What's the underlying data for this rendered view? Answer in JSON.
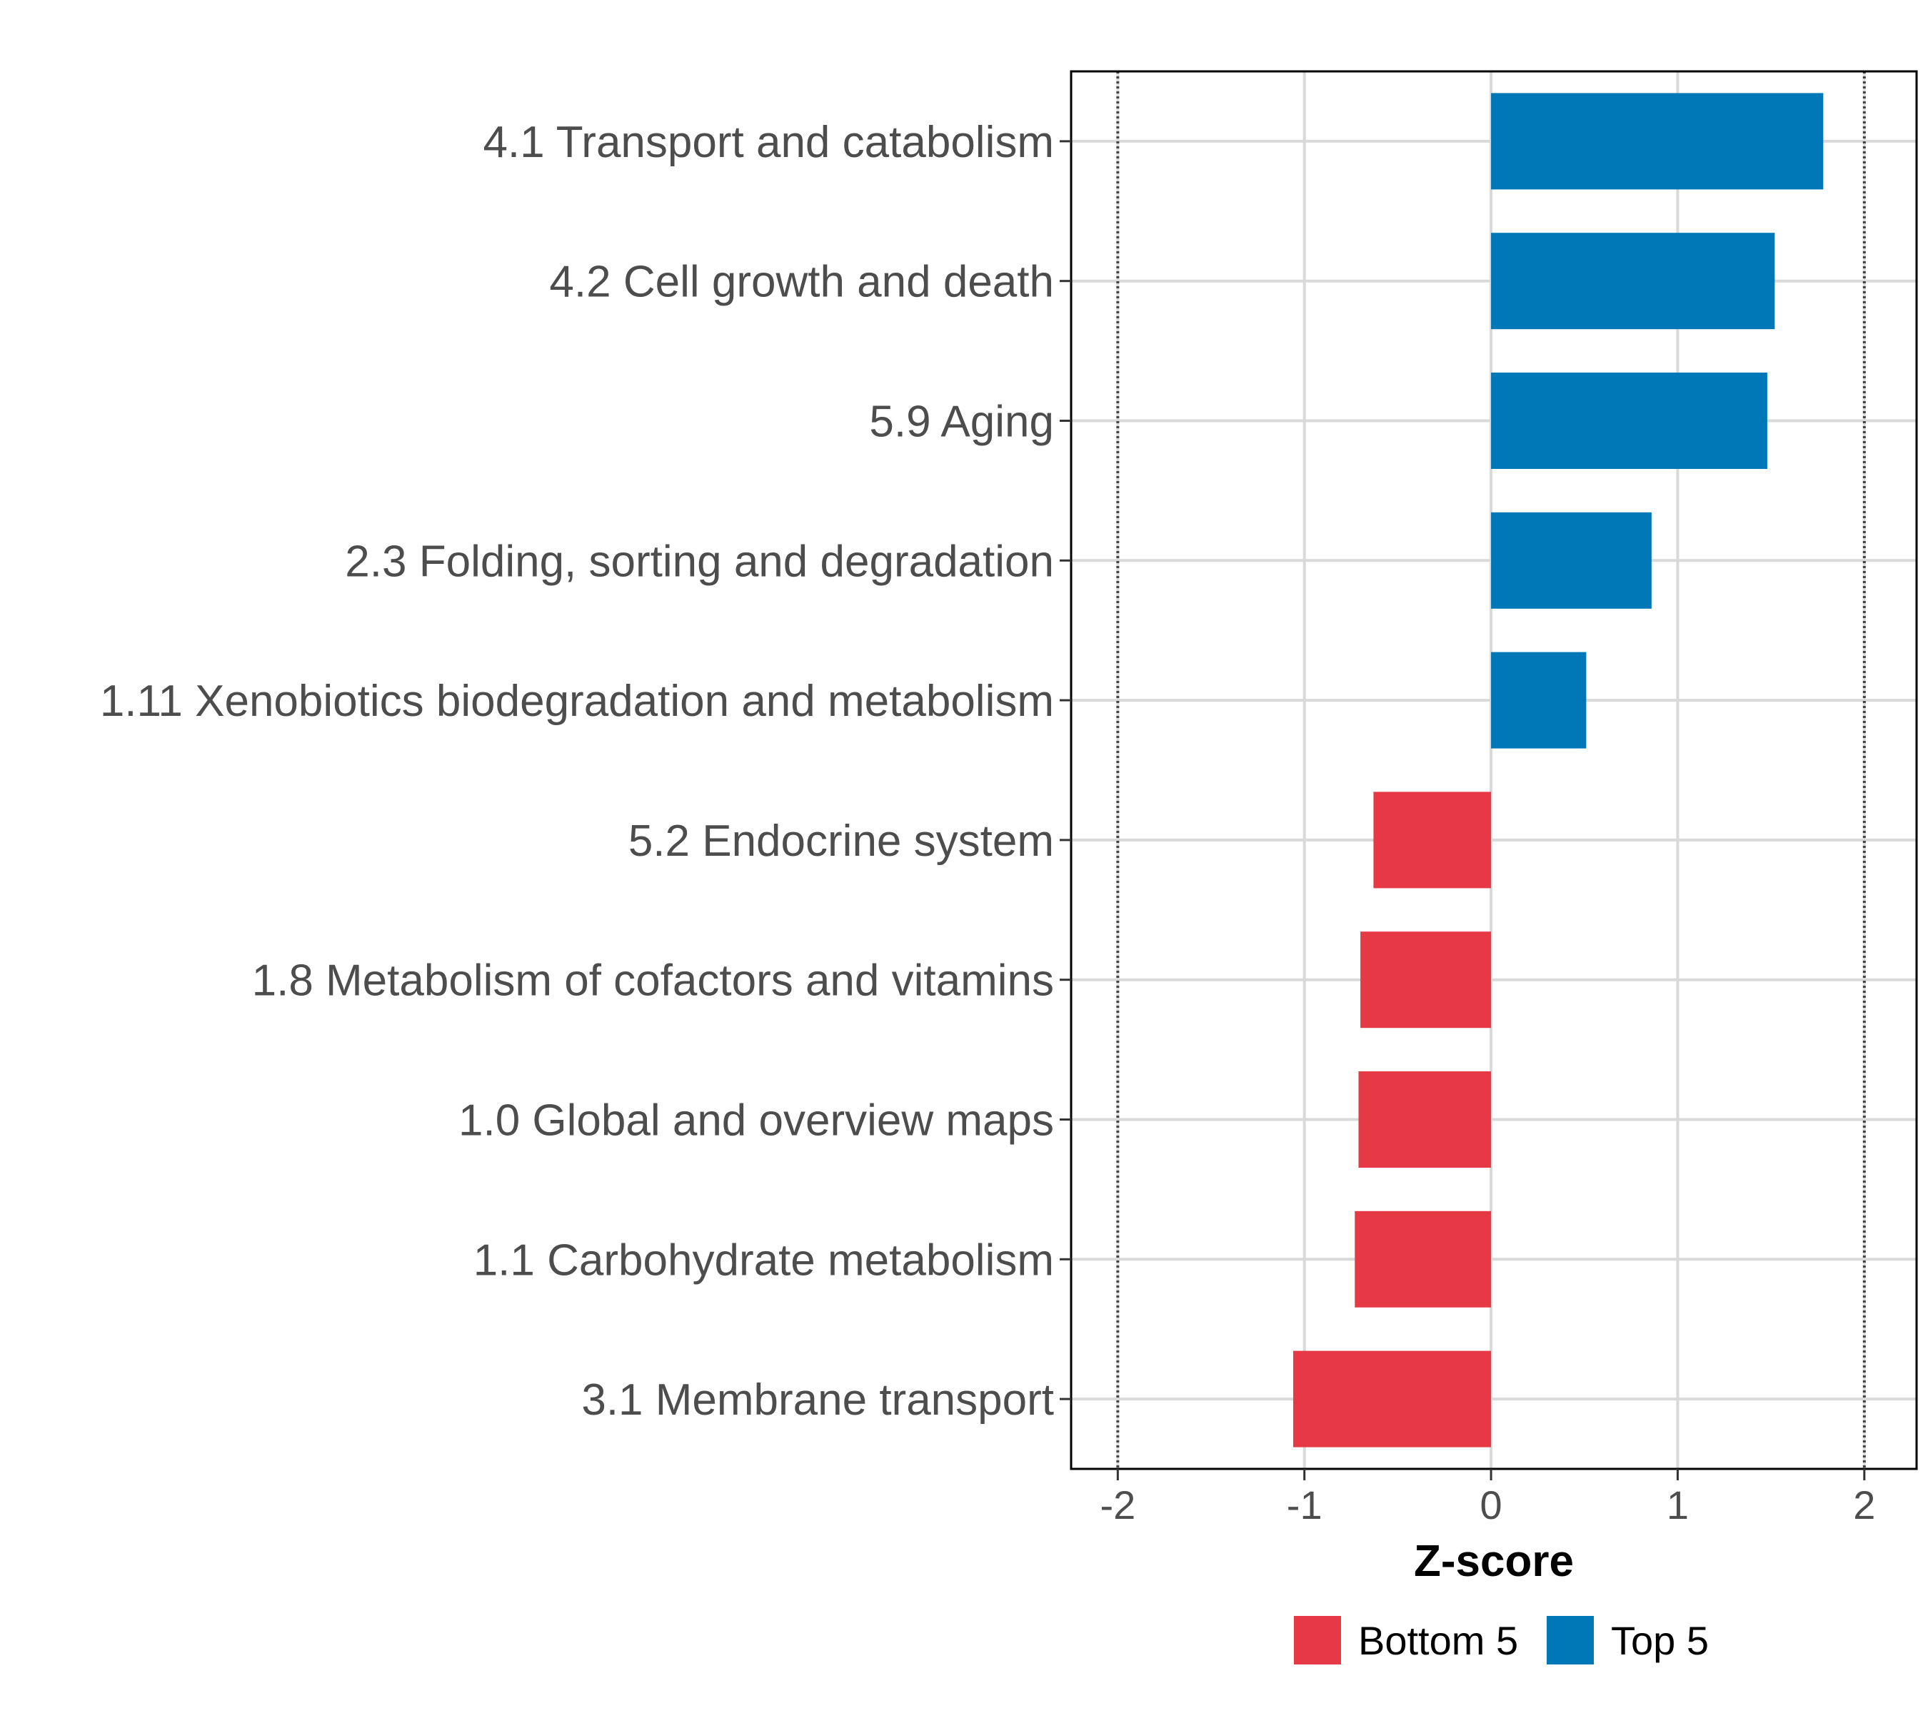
{
  "chart_data": {
    "type": "bar",
    "orientation": "horizontal",
    "title": "",
    "xlabel": "Z-score",
    "ylabel": "",
    "xlim": [
      -2.25,
      2.28
    ],
    "x_ticks": [
      "-2",
      "-1",
      "0",
      "1",
      "2"
    ],
    "x_tick_values": [
      -2,
      -1,
      0,
      1,
      2
    ],
    "reference_lines": [
      -2,
      2
    ],
    "grid": true,
    "legend_position": "bottom",
    "legend": [
      {
        "name": "Bottom 5",
        "color": "#e63946"
      },
      {
        "name": "Top 5",
        "color": "#0077b6"
      }
    ],
    "categories": [
      "4.1 Transport and catabolism",
      "4.2 Cell growth and death",
      "5.9 Aging",
      "2.3 Folding, sorting and degradation",
      "1.11 Xenobiotics biodegradation and metabolism",
      "5.2 Endocrine system",
      "1.8 Metabolism of cofactors and vitamins",
      "1.0 Global and overview maps",
      "1.1 Carbohydrate metabolism",
      "3.1 Membrane transport"
    ],
    "values": [
      1.78,
      1.52,
      1.48,
      0.86,
      0.51,
      -0.63,
      -0.7,
      -0.71,
      -0.73,
      -1.06
    ],
    "groups": [
      "Top 5",
      "Top 5",
      "Top 5",
      "Top 5",
      "Top 5",
      "Bottom 5",
      "Bottom 5",
      "Bottom 5",
      "Bottom 5",
      "Bottom 5"
    ]
  }
}
